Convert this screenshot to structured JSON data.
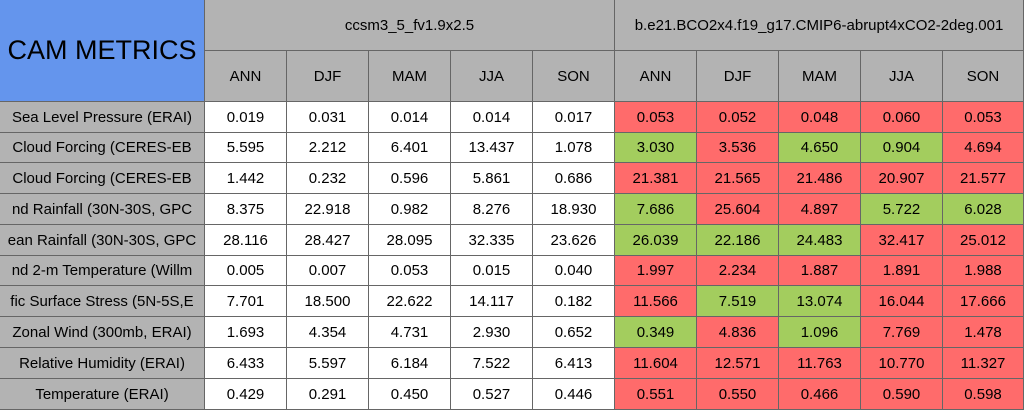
{
  "title": "CAM METRICS",
  "groups": [
    {
      "name": "ccsm3_5_fv1.9x2.5"
    },
    {
      "name": "b.e21.BCO2x4.f19_g17.CMIP6-abrupt4xCO2-2deg.001"
    }
  ],
  "seasons": [
    "ANN",
    "DJF",
    "MAM",
    "JJA",
    "SON"
  ],
  "colors": {
    "header": "#b3b3b3",
    "title_bg": "#6495ed",
    "better": "#a3cd5e",
    "worse": "#ff6b6b",
    "neutral": "#ffffff"
  },
  "rows": [
    {
      "label": "Sea Level Pressure (ERAI)",
      "g1": [
        "0.019",
        "0.031",
        "0.014",
        "0.014",
        "0.017"
      ],
      "g2": [
        "0.053",
        "0.052",
        "0.048",
        "0.060",
        "0.053"
      ],
      "g2_status": [
        "worse",
        "worse",
        "worse",
        "worse",
        "worse"
      ]
    },
    {
      "label": "Cloud Forcing (CERES-EB",
      "g1": [
        "5.595",
        "2.212",
        "6.401",
        "13.437",
        "1.078"
      ],
      "g2": [
        "3.030",
        "3.536",
        "4.650",
        "0.904",
        "4.694"
      ],
      "g2_status": [
        "better",
        "worse",
        "better",
        "better",
        "worse"
      ]
    },
    {
      "label": "Cloud Forcing (CERES-EB",
      "g1": [
        "1.442",
        "0.232",
        "0.596",
        "5.861",
        "0.686"
      ],
      "g2": [
        "21.381",
        "21.565",
        "21.486",
        "20.907",
        "21.577"
      ],
      "g2_status": [
        "worse",
        "worse",
        "worse",
        "worse",
        "worse"
      ]
    },
    {
      "label": "nd Rainfall (30N-30S, GPC",
      "g1": [
        "8.375",
        "22.918",
        "0.982",
        "8.276",
        "18.930"
      ],
      "g2": [
        "7.686",
        "25.604",
        "4.897",
        "5.722",
        "6.028"
      ],
      "g2_status": [
        "better",
        "worse",
        "worse",
        "better",
        "better"
      ]
    },
    {
      "label": "ean Rainfall (30N-30S, GPC",
      "g1": [
        "28.116",
        "28.427",
        "28.095",
        "32.335",
        "23.626"
      ],
      "g2": [
        "26.039",
        "22.186",
        "24.483",
        "32.417",
        "25.012"
      ],
      "g2_status": [
        "better",
        "better",
        "better",
        "worse",
        "worse"
      ]
    },
    {
      "label": "nd 2-m Temperature (Willm",
      "g1": [
        "0.005",
        "0.007",
        "0.053",
        "0.015",
        "0.040"
      ],
      "g2": [
        "1.997",
        "2.234",
        "1.887",
        "1.891",
        "1.988"
      ],
      "g2_status": [
        "worse",
        "worse",
        "worse",
        "worse",
        "worse"
      ]
    },
    {
      "label": "fic Surface Stress (5N-5S,E",
      "g1": [
        "7.701",
        "18.500",
        "22.622",
        "14.117",
        "0.182"
      ],
      "g2": [
        "11.566",
        "7.519",
        "13.074",
        "16.044",
        "17.666"
      ],
      "g2_status": [
        "worse",
        "better",
        "better",
        "worse",
        "worse"
      ]
    },
    {
      "label": "Zonal Wind (300mb, ERAI)",
      "g1": [
        "1.693",
        "4.354",
        "4.731",
        "2.930",
        "0.652"
      ],
      "g2": [
        "0.349",
        "4.836",
        "1.096",
        "7.769",
        "1.478"
      ],
      "g2_status": [
        "better",
        "worse",
        "better",
        "worse",
        "worse"
      ]
    },
    {
      "label": "Relative Humidity (ERAI)",
      "g1": [
        "6.433",
        "5.597",
        "6.184",
        "7.522",
        "6.413"
      ],
      "g2": [
        "11.604",
        "12.571",
        "11.763",
        "10.770",
        "11.327"
      ],
      "g2_status": [
        "worse",
        "worse",
        "worse",
        "worse",
        "worse"
      ]
    },
    {
      "label": "Temperature (ERAI)",
      "g1": [
        "0.429",
        "0.291",
        "0.450",
        "0.527",
        "0.446"
      ],
      "g2": [
        "0.551",
        "0.550",
        "0.466",
        "0.590",
        "0.598"
      ],
      "g2_status": [
        "worse",
        "worse",
        "worse",
        "worse",
        "worse"
      ]
    }
  ]
}
